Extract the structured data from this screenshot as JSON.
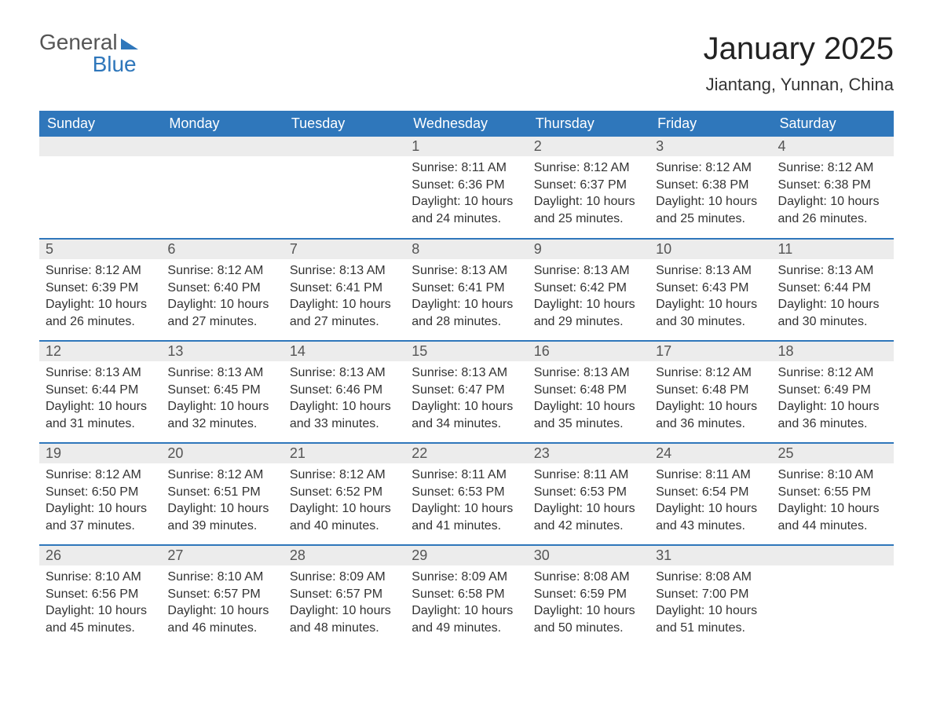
{
  "logo": {
    "word1": "General",
    "word2": "Blue"
  },
  "title": "January 2025",
  "location": "Jiantang, Yunnan, China",
  "colors": {
    "header_bg": "#2f77bb",
    "header_text": "#ffffff",
    "daynum_bg": "#ececec",
    "daynum_text": "#555555",
    "body_text": "#333333",
    "row_border": "#2f77bb",
    "page_bg": "#ffffff",
    "logo_gray": "#555555",
    "logo_blue": "#2f77bb"
  },
  "typography": {
    "title_fontsize": 40,
    "location_fontsize": 22,
    "dayheader_fontsize": 18,
    "daynum_fontsize": 18,
    "details_fontsize": 16
  },
  "day_headers": [
    "Sunday",
    "Monday",
    "Tuesday",
    "Wednesday",
    "Thursday",
    "Friday",
    "Saturday"
  ],
  "weeks": [
    [
      {
        "n": "",
        "sunrise": "",
        "sunset": "",
        "daylight": ""
      },
      {
        "n": "",
        "sunrise": "",
        "sunset": "",
        "daylight": ""
      },
      {
        "n": "",
        "sunrise": "",
        "sunset": "",
        "daylight": ""
      },
      {
        "n": "1",
        "sunrise": "Sunrise: 8:11 AM",
        "sunset": "Sunset: 6:36 PM",
        "daylight": "Daylight: 10 hours and 24 minutes."
      },
      {
        "n": "2",
        "sunrise": "Sunrise: 8:12 AM",
        "sunset": "Sunset: 6:37 PM",
        "daylight": "Daylight: 10 hours and 25 minutes."
      },
      {
        "n": "3",
        "sunrise": "Sunrise: 8:12 AM",
        "sunset": "Sunset: 6:38 PM",
        "daylight": "Daylight: 10 hours and 25 minutes."
      },
      {
        "n": "4",
        "sunrise": "Sunrise: 8:12 AM",
        "sunset": "Sunset: 6:38 PM",
        "daylight": "Daylight: 10 hours and 26 minutes."
      }
    ],
    [
      {
        "n": "5",
        "sunrise": "Sunrise: 8:12 AM",
        "sunset": "Sunset: 6:39 PM",
        "daylight": "Daylight: 10 hours and 26 minutes."
      },
      {
        "n": "6",
        "sunrise": "Sunrise: 8:12 AM",
        "sunset": "Sunset: 6:40 PM",
        "daylight": "Daylight: 10 hours and 27 minutes."
      },
      {
        "n": "7",
        "sunrise": "Sunrise: 8:13 AM",
        "sunset": "Sunset: 6:41 PM",
        "daylight": "Daylight: 10 hours and 27 minutes."
      },
      {
        "n": "8",
        "sunrise": "Sunrise: 8:13 AM",
        "sunset": "Sunset: 6:41 PM",
        "daylight": "Daylight: 10 hours and 28 minutes."
      },
      {
        "n": "9",
        "sunrise": "Sunrise: 8:13 AM",
        "sunset": "Sunset: 6:42 PM",
        "daylight": "Daylight: 10 hours and 29 minutes."
      },
      {
        "n": "10",
        "sunrise": "Sunrise: 8:13 AM",
        "sunset": "Sunset: 6:43 PM",
        "daylight": "Daylight: 10 hours and 30 minutes."
      },
      {
        "n": "11",
        "sunrise": "Sunrise: 8:13 AM",
        "sunset": "Sunset: 6:44 PM",
        "daylight": "Daylight: 10 hours and 30 minutes."
      }
    ],
    [
      {
        "n": "12",
        "sunrise": "Sunrise: 8:13 AM",
        "sunset": "Sunset: 6:44 PM",
        "daylight": "Daylight: 10 hours and 31 minutes."
      },
      {
        "n": "13",
        "sunrise": "Sunrise: 8:13 AM",
        "sunset": "Sunset: 6:45 PM",
        "daylight": "Daylight: 10 hours and 32 minutes."
      },
      {
        "n": "14",
        "sunrise": "Sunrise: 8:13 AM",
        "sunset": "Sunset: 6:46 PM",
        "daylight": "Daylight: 10 hours and 33 minutes."
      },
      {
        "n": "15",
        "sunrise": "Sunrise: 8:13 AM",
        "sunset": "Sunset: 6:47 PM",
        "daylight": "Daylight: 10 hours and 34 minutes."
      },
      {
        "n": "16",
        "sunrise": "Sunrise: 8:13 AM",
        "sunset": "Sunset: 6:48 PM",
        "daylight": "Daylight: 10 hours and 35 minutes."
      },
      {
        "n": "17",
        "sunrise": "Sunrise: 8:12 AM",
        "sunset": "Sunset: 6:48 PM",
        "daylight": "Daylight: 10 hours and 36 minutes."
      },
      {
        "n": "18",
        "sunrise": "Sunrise: 8:12 AM",
        "sunset": "Sunset: 6:49 PM",
        "daylight": "Daylight: 10 hours and 36 minutes."
      }
    ],
    [
      {
        "n": "19",
        "sunrise": "Sunrise: 8:12 AM",
        "sunset": "Sunset: 6:50 PM",
        "daylight": "Daylight: 10 hours and 37 minutes."
      },
      {
        "n": "20",
        "sunrise": "Sunrise: 8:12 AM",
        "sunset": "Sunset: 6:51 PM",
        "daylight": "Daylight: 10 hours and 39 minutes."
      },
      {
        "n": "21",
        "sunrise": "Sunrise: 8:12 AM",
        "sunset": "Sunset: 6:52 PM",
        "daylight": "Daylight: 10 hours and 40 minutes."
      },
      {
        "n": "22",
        "sunrise": "Sunrise: 8:11 AM",
        "sunset": "Sunset: 6:53 PM",
        "daylight": "Daylight: 10 hours and 41 minutes."
      },
      {
        "n": "23",
        "sunrise": "Sunrise: 8:11 AM",
        "sunset": "Sunset: 6:53 PM",
        "daylight": "Daylight: 10 hours and 42 minutes."
      },
      {
        "n": "24",
        "sunrise": "Sunrise: 8:11 AM",
        "sunset": "Sunset: 6:54 PM",
        "daylight": "Daylight: 10 hours and 43 minutes."
      },
      {
        "n": "25",
        "sunrise": "Sunrise: 8:10 AM",
        "sunset": "Sunset: 6:55 PM",
        "daylight": "Daylight: 10 hours and 44 minutes."
      }
    ],
    [
      {
        "n": "26",
        "sunrise": "Sunrise: 8:10 AM",
        "sunset": "Sunset: 6:56 PM",
        "daylight": "Daylight: 10 hours and 45 minutes."
      },
      {
        "n": "27",
        "sunrise": "Sunrise: 8:10 AM",
        "sunset": "Sunset: 6:57 PM",
        "daylight": "Daylight: 10 hours and 46 minutes."
      },
      {
        "n": "28",
        "sunrise": "Sunrise: 8:09 AM",
        "sunset": "Sunset: 6:57 PM",
        "daylight": "Daylight: 10 hours and 48 minutes."
      },
      {
        "n": "29",
        "sunrise": "Sunrise: 8:09 AM",
        "sunset": "Sunset: 6:58 PM",
        "daylight": "Daylight: 10 hours and 49 minutes."
      },
      {
        "n": "30",
        "sunrise": "Sunrise: 8:08 AM",
        "sunset": "Sunset: 6:59 PM",
        "daylight": "Daylight: 10 hours and 50 minutes."
      },
      {
        "n": "31",
        "sunrise": "Sunrise: 8:08 AM",
        "sunset": "Sunset: 7:00 PM",
        "daylight": "Daylight: 10 hours and 51 minutes."
      },
      {
        "n": "",
        "sunrise": "",
        "sunset": "",
        "daylight": ""
      }
    ]
  ]
}
